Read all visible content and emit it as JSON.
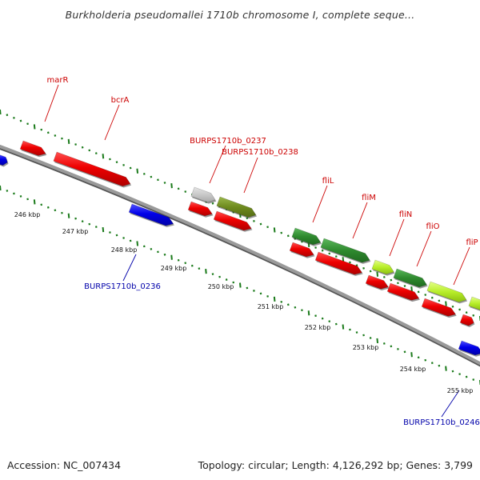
{
  "title": "Burkholderia pseudomallei 1710b chromosome I, complete seque...",
  "footer": {
    "accession": "Accession: NC_007434",
    "summary": "Topology: circular; Length: 4,126,292 bp; Genes: 3,799"
  },
  "colors": {
    "forward_cds": "#e80000",
    "reverse_cds": "#0000e0",
    "backbone": "#8a8a8a",
    "tick": "#1a7a1a",
    "gene_dark": "#2f8a2f",
    "gene_olive": "#6e8a1e",
    "gene_light": "#b8ee2a",
    "gene_grey": "#c8c8c8",
    "label_top": "#cc0000",
    "label_bottom": "#0000aa"
  },
  "kbp_labels": [
    "246 kbp",
    "247 kbp",
    "248 kbp",
    "249 kbp",
    "250 kbp",
    "251 kbp",
    "252 kbp",
    "253 kbp",
    "254 kbp",
    "255 kbp"
  ],
  "top_labels": [
    "marR",
    "bcrA",
    "BURPS1710b_0237",
    "BURPS1710b_0238",
    "fliL",
    "fliM",
    "fliN",
    "fliO",
    "fliP"
  ],
  "bottom_labels": [
    "BURPS1710b_0236",
    "BURPS1710b_0246"
  ]
}
